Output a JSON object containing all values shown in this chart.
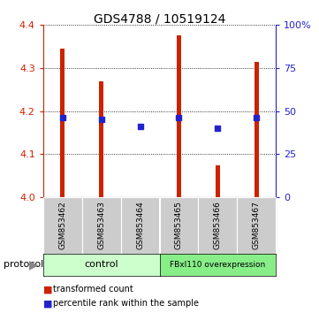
{
  "title": "GDS4788 / 10519124",
  "categories": [
    "GSM853462",
    "GSM853463",
    "GSM853464",
    "GSM853465",
    "GSM853466",
    "GSM853467"
  ],
  "red_values": [
    4.345,
    4.27,
    4.0,
    4.375,
    4.075,
    4.315
  ],
  "blue_values": [
    4.185,
    4.18,
    4.165,
    4.185,
    4.16,
    4.185
  ],
  "ylim_left": [
    4.0,
    4.4
  ],
  "ylim_right": [
    0,
    100
  ],
  "yticks_left": [
    4.0,
    4.1,
    4.2,
    4.3,
    4.4
  ],
  "yticks_right": [
    0,
    25,
    50,
    75,
    100
  ],
  "ytick_labels_right": [
    "0",
    "25",
    "50",
    "75",
    "100%"
  ],
  "bar_width": 0.12,
  "red_color": "#cc2200",
  "blue_color": "#2222cc",
  "left_axis_color": "#cc2200",
  "right_axis_color": "#2222cc",
  "control_label": "control",
  "overexpression_label": "FBxl110 overexpression",
  "control_color": "#ccffcc",
  "overexpression_color": "#88ee88",
  "protocol_label": "protocol",
  "legend_red": "transformed count",
  "legend_blue": "percentile rank within the sample",
  "background_color": "#ffffff",
  "plot_bg": "#ffffff",
  "box_color": "#cccccc"
}
